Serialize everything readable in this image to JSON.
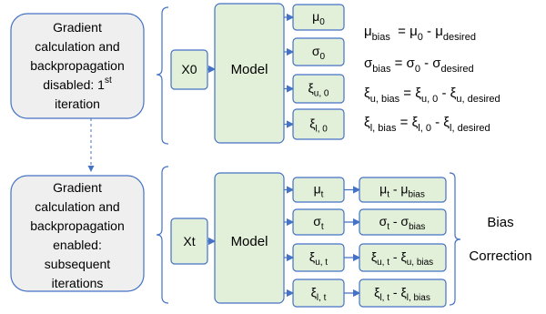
{
  "top": {
    "condition_box": {
      "lines": [
        {
          "text": "Gradient"
        },
        {
          "text": "calculation and"
        },
        {
          "text": "backpropagation"
        },
        {
          "text": "disabled: 1",
          "sup": "st"
        },
        {
          "text": "iteration"
        }
      ]
    },
    "input": [
      [
        "X",
        "0"
      ]
    ],
    "model": "Model",
    "outputs": [
      [
        [
          "μ",
          "0"
        ]
      ],
      [
        [
          "σ",
          "0"
        ]
      ],
      [
        [
          "ξ",
          "u, 0"
        ]
      ],
      [
        [
          "ξ",
          "l, 0"
        ]
      ]
    ],
    "equations": [
      [
        [
          "μ",
          "bias"
        ],
        [
          "  = μ",
          "0"
        ],
        [
          " - μ",
          "desired"
        ]
      ],
      [
        [
          "σ",
          "bias"
        ],
        [
          " = σ",
          "0"
        ],
        [
          " - σ",
          "desired"
        ]
      ],
      [
        [
          "ξ",
          "u, bias"
        ],
        [
          " = ξ",
          "u, 0"
        ],
        [
          " - ξ",
          "u, desired"
        ]
      ],
      [
        [
          "ξ",
          "l, bias"
        ],
        [
          " = ξ",
          "l, 0"
        ],
        [
          " - ξ",
          "l, desired"
        ]
      ]
    ]
  },
  "bottom": {
    "condition_box": {
      "lines": [
        {
          "text": "Gradient"
        },
        {
          "text": "calculation and"
        },
        {
          "text": "backpropagation"
        },
        {
          "text": "enabled:"
        },
        {
          "text": "subsequent"
        },
        {
          "text": "iterations"
        }
      ]
    },
    "input": [
      [
        "X",
        "t"
      ]
    ],
    "model": "Model",
    "outputs": [
      [
        [
          "μ",
          "t"
        ]
      ],
      [
        [
          "σ",
          "t"
        ]
      ],
      [
        [
          "ξ",
          "u, t"
        ]
      ],
      [
        [
          "ξ",
          "l, t"
        ]
      ]
    ],
    "results": [
      [
        [
          "μ",
          "t"
        ],
        [
          " - μ",
          "bias"
        ]
      ],
      [
        [
          "σ",
          "t"
        ],
        [
          " - σ",
          "bias"
        ]
      ],
      [
        [
          "ξ",
          "u, t"
        ],
        [
          " - ξ",
          "u, bias"
        ]
      ],
      [
        [
          "ξ",
          "l, t"
        ],
        [
          " - ξ",
          "l, bias"
        ]
      ]
    ],
    "label_lines": [
      "Bias",
      "Correction"
    ]
  }
}
